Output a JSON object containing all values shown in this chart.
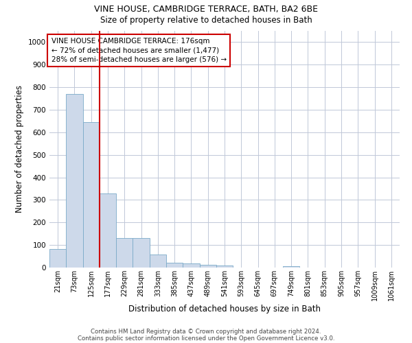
{
  "title1": "VINE HOUSE, CAMBRIDGE TERRACE, BATH, BA2 6BE",
  "title2": "Size of property relative to detached houses in Bath",
  "xlabel": "Distribution of detached houses by size in Bath",
  "ylabel": "Number of detached properties",
  "bar_color": "#cdd9ea",
  "bar_edge_color": "#7aaac8",
  "bar_width": 1.0,
  "categories": [
    "21sqm",
    "73sqm",
    "125sqm",
    "177sqm",
    "229sqm",
    "281sqm",
    "333sqm",
    "385sqm",
    "437sqm",
    "489sqm",
    "541sqm",
    "593sqm",
    "645sqm",
    "697sqm",
    "749sqm",
    "801sqm",
    "853sqm",
    "905sqm",
    "957sqm",
    "1009sqm",
    "1061sqm"
  ],
  "values": [
    82,
    770,
    645,
    330,
    132,
    132,
    57,
    22,
    18,
    12,
    8,
    0,
    0,
    0,
    7,
    0,
    0,
    0,
    0,
    0,
    0
  ],
  "ylim": [
    0,
    1050
  ],
  "yticks": [
    0,
    100,
    200,
    300,
    400,
    500,
    600,
    700,
    800,
    900,
    1000
  ],
  "vline_x": 2.5,
  "vline_color": "#cc0000",
  "annotation_text": "VINE HOUSE CAMBRIDGE TERRACE: 176sqm\n← 72% of detached houses are smaller (1,477)\n28% of semi-detached houses are larger (576) →",
  "annotation_box_color": "#ffffff",
  "annotation_edge_color": "#cc0000",
  "footer1": "Contains HM Land Registry data © Crown copyright and database right 2024.",
  "footer2": "Contains public sector information licensed under the Open Government Licence v3.0.",
  "bg_color": "#ffffff",
  "grid_color": "#c0c8d8",
  "fig_width": 6.0,
  "fig_height": 5.0,
  "dpi": 100
}
